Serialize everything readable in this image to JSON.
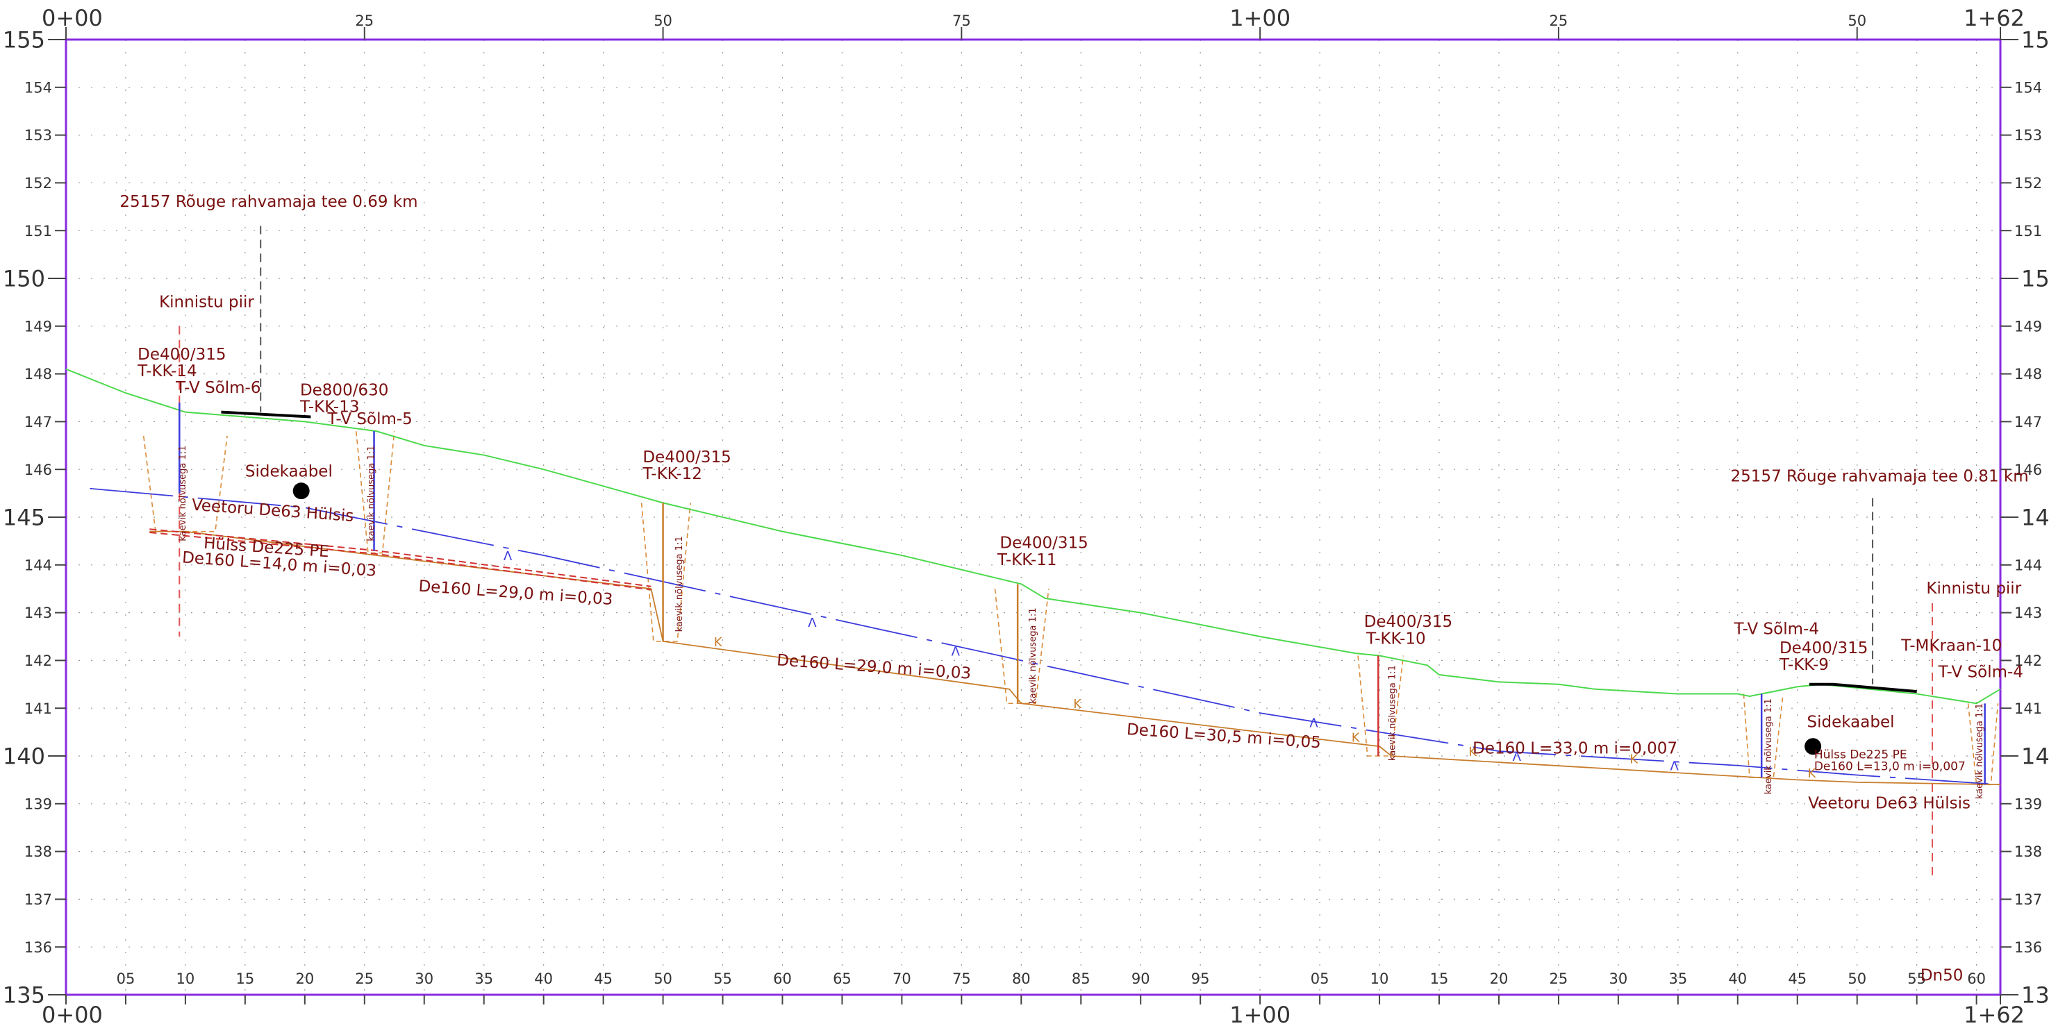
{
  "chart_data": {
    "type": "profile",
    "x_range": [
      0,
      162
    ],
    "y_range": [
      135,
      155
    ],
    "top_station_labels": [
      {
        "x": 0,
        "text": "0+00"
      },
      {
        "x": 25,
        "text": "25"
      },
      {
        "x": 50,
        "text": "50"
      },
      {
        "x": 75,
        "text": "75"
      },
      {
        "x": 100,
        "text": "1+00"
      },
      {
        "x": 125,
        "text": "25"
      },
      {
        "x": 150,
        "text": "50"
      },
      {
        "x": 162,
        "text": "1+62"
      }
    ],
    "bottom_station_labels": [
      {
        "x": 0,
        "text": "0+00"
      },
      {
        "x": 5,
        "text": "05"
      },
      {
        "x": 10,
        "text": "10"
      },
      {
        "x": 15,
        "text": "15"
      },
      {
        "x": 20,
        "text": "20"
      },
      {
        "x": 25,
        "text": "25"
      },
      {
        "x": 30,
        "text": "30"
      },
      {
        "x": 35,
        "text": "35"
      },
      {
        "x": 40,
        "text": "40"
      },
      {
        "x": 45,
        "text": "45"
      },
      {
        "x": 50,
        "text": "50"
      },
      {
        "x": 55,
        "text": "55"
      },
      {
        "x": 60,
        "text": "60"
      },
      {
        "x": 65,
        "text": "65"
      },
      {
        "x": 70,
        "text": "70"
      },
      {
        "x": 75,
        "text": "75"
      },
      {
        "x": 80,
        "text": "80"
      },
      {
        "x": 85,
        "text": "85"
      },
      {
        "x": 90,
        "text": "90"
      },
      {
        "x": 95,
        "text": "95"
      },
      {
        "x": 100,
        "text": "1+00"
      },
      {
        "x": 105,
        "text": "05"
      },
      {
        "x": 110,
        "text": "10"
      },
      {
        "x": 115,
        "text": "15"
      },
      {
        "x": 120,
        "text": "20"
      },
      {
        "x": 125,
        "text": "25"
      },
      {
        "x": 130,
        "text": "30"
      },
      {
        "x": 135,
        "text": "35"
      },
      {
        "x": 140,
        "text": "40"
      },
      {
        "x": 145,
        "text": "45"
      },
      {
        "x": 150,
        "text": "50"
      },
      {
        "x": 155,
        "text": "55"
      },
      {
        "x": 160,
        "text": "60"
      },
      {
        "x": 162,
        "text": "1+62"
      }
    ],
    "elevation_labels": [
      "135",
      "136",
      "137",
      "138",
      "139",
      "140",
      "141",
      "142",
      "143",
      "144",
      "145",
      "146",
      "147",
      "148",
      "149",
      "150",
      "151",
      "152",
      "153",
      "154",
      "155"
    ],
    "major_elevations": [
      "135",
      "140",
      "145",
      "150",
      "155"
    ],
    "series": [
      {
        "key": "ground",
        "color": "#4cd94c",
        "x": [
          0,
          5,
          10,
          20,
          26,
          30,
          35,
          40,
          50,
          60,
          70,
          80,
          82,
          90,
          100,
          108,
          110,
          114,
          115,
          120,
          125,
          128,
          135,
          140,
          141,
          145,
          147,
          155,
          160,
          162
        ],
        "y": [
          148.1,
          147.6,
          147.2,
          147.0,
          146.8,
          146.5,
          146.3,
          146.0,
          145.3,
          144.7,
          144.2,
          143.6,
          143.3,
          143.0,
          142.5,
          142.15,
          142.1,
          141.9,
          141.7,
          141.55,
          141.5,
          141.4,
          141.3,
          141.3,
          141.25,
          141.45,
          141.5,
          141.3,
          141.1,
          141.4
        ]
      },
      {
        "key": "water_pipe",
        "color": "#3b3bdc",
        "x": [
          2,
          20,
          40,
          60,
          80,
          100,
          120,
          140,
          150,
          162
        ],
        "y": [
          145.6,
          145.2,
          144.2,
          143.1,
          142.0,
          140.9,
          140.1,
          139.8,
          139.6,
          139.4
        ]
      },
      {
        "key": "sewer_invert",
        "color": "#c87d2c",
        "x": [
          7,
          10,
          26,
          49,
          50,
          79,
          80,
          110,
          111,
          145,
          150,
          162
        ],
        "y": [
          144.7,
          144.7,
          144.2,
          143.5,
          142.4,
          141.4,
          141.1,
          140.2,
          140.0,
          139.5,
          139.45,
          139.4
        ]
      },
      {
        "key": "cable_conduit",
        "color": "#d23232",
        "x": [
          7,
          26,
          49
        ],
        "y": [
          144.75,
          144.3,
          143.55
        ]
      }
    ],
    "road_surfaces": [
      {
        "x": [
          13,
          20.5
        ],
        "y": [
          147.2,
          147.1
        ]
      },
      {
        "x": [
          146,
          148,
          155
        ],
        "y": [
          141.5,
          141.5,
          141.35
        ]
      }
    ],
    "wells": [
      {
        "x": 9.5,
        "top": 147.4,
        "bottom": 145.5,
        "color": "#3b3bdc"
      },
      {
        "x": 25.8,
        "top": 146.8,
        "bottom": 144.3,
        "color": "#3b3bdc"
      },
      {
        "x": 50,
        "top": 145.3,
        "bottom": 142.4,
        "color": "#c87d2c"
      },
      {
        "x": 79.7,
        "top": 143.6,
        "bottom": 141.1,
        "color": "#c87d2c"
      },
      {
        "x": 109.9,
        "top": 142.1,
        "bottom": 140.0,
        "color": "#d23232"
      },
      {
        "x": 142,
        "top": 141.3,
        "bottom": 139.55,
        "color": "#3b3bdc"
      },
      {
        "x": 160.7,
        "top": 141.1,
        "bottom": 139.4,
        "color": "#3b3bdc"
      }
    ],
    "excavations": [
      {
        "x": [
          6.5,
          7.5,
          12.5,
          13.5
        ],
        "top": 146.7,
        "bottom": 144.7
      },
      {
        "x": [
          24.3,
          25.3,
          26.5,
          27.5
        ],
        "top": 146.8,
        "bottom": 144.25
      },
      {
        "x": [
          48.2,
          49.2,
          51.2,
          52.3
        ],
        "top": 145.3,
        "bottom": 142.4
      },
      {
        "x": [
          77.8,
          78.8,
          81.2,
          82.3
        ],
        "top": 143.5,
        "bottom": 141.1
      },
      {
        "x": [
          108.2,
          109.0,
          111.0,
          112.0
        ],
        "top": 142.1,
        "bottom": 140.0
      },
      {
        "x": [
          140.5,
          141.0,
          143.0,
          143.8
        ],
        "top": 141.3,
        "bottom": 139.55
      },
      {
        "x": [
          159.3,
          160.0,
          161.2,
          161.8
        ],
        "top": 141.1,
        "bottom": 139.4
      }
    ],
    "leaders": [
      {
        "x": 16.3,
        "y1": 151.1,
        "y2": 147.2,
        "color": "#555555"
      },
      {
        "x": 151.3,
        "y1": 145.4,
        "y2": 141.5,
        "color": "#555555"
      },
      {
        "x": 9.5,
        "y1": 149.0,
        "y2": 142.5,
        "color": "#e05555"
      },
      {
        "x": 156.3,
        "y1": 143.2,
        "y2": 137.4,
        "color": "#e05555"
      }
    ],
    "markers": [
      {
        "name": "sidekaabel-marker",
        "x": 19.7,
        "y": 145.55
      },
      {
        "name": "sidekaabel-marker",
        "x": 146.3,
        "y": 140.2
      }
    ],
    "annotations": [
      {
        "name": "road-label",
        "text": "25157 Rõuge rahvamaja tee  0.69 km",
        "x": 4.5,
        "y": 151.5,
        "size": 23
      },
      {
        "name": "property-boundary-label",
        "text": "Kinnistu piir",
        "x": 7.8,
        "y": 149.4,
        "size": 23
      },
      {
        "name": "pipe-size-label",
        "text": "De400/315",
        "x": 6,
        "y": 148.3,
        "size": 23
      },
      {
        "name": "well-id-label",
        "text": "T-KK-14",
        "x": 6,
        "y": 147.95,
        "size": 23
      },
      {
        "name": "node-label",
        "text": "T-V Sõlm-6",
        "x": 9.2,
        "y": 147.6,
        "size": 23
      },
      {
        "name": "pipe-size-label",
        "text": "De800/630",
        "x": 19.6,
        "y": 147.55,
        "size": 23
      },
      {
        "name": "well-id-label",
        "text": "T-KK-13",
        "x": 19.6,
        "y": 147.2,
        "size": 23
      },
      {
        "name": "node-label",
        "text": "T-V Sõlm-5",
        "x": 21.9,
        "y": 146.95,
        "size": 23
      },
      {
        "name": "sidekaabel-label",
        "text": "Sidekaabel",
        "x": 15,
        "y": 145.85,
        "size": 23
      },
      {
        "name": "water-pipe-label",
        "text": "Veetoru De63 Hülsis",
        "x": 10.5,
        "y": 145.15,
        "size": 23,
        "rotate": 4
      },
      {
        "name": "conduit-label",
        "text": "Hülss De225 PE",
        "x": 11.5,
        "y": 144.35,
        "size": 23,
        "rotate": 4
      },
      {
        "name": "sewer-segment-label",
        "text": "De160 L=14,0 m i=0,03",
        "x": 9.7,
        "y": 144.05,
        "size": 23,
        "rotate": 4
      },
      {
        "name": "sewer-segment-label",
        "text": "De160 L=29,0 m i=0,03",
        "x": 29.5,
        "y": 143.45,
        "size": 23,
        "rotate": 4
      },
      {
        "name": "pipe-size-label",
        "text": "De400/315",
        "x": 48.3,
        "y": 146.15,
        "size": 23
      },
      {
        "name": "well-id-label",
        "text": "T-KK-12",
        "x": 48.3,
        "y": 145.8,
        "size": 23
      },
      {
        "name": "sewer-segment-label",
        "text": "De160 L=29,0 m i=0,03",
        "x": 59.5,
        "y": 141.9,
        "size": 23,
        "rotate": 4
      },
      {
        "name": "pipe-size-label",
        "text": "De400/315",
        "x": 78.2,
        "y": 144.35,
        "size": 23
      },
      {
        "name": "well-id-label",
        "text": "T-KK-11",
        "x": 78,
        "y": 144.0,
        "size": 23
      },
      {
        "name": "sewer-segment-label",
        "text": "De160 L=30,5 m i=0,05",
        "x": 88.8,
        "y": 140.45,
        "size": 23,
        "rotate": 4
      },
      {
        "name": "pipe-size-label",
        "text": "De400/315",
        "x": 108.7,
        "y": 142.7,
        "size": 23
      },
      {
        "name": "well-id-label",
        "text": "T-KK-10",
        "x": 108.9,
        "y": 142.35,
        "size": 23
      },
      {
        "name": "sewer-segment-label",
        "text": "De160 L=33,0 m i=0,007",
        "x": 117.8,
        "y": 140.05,
        "size": 23
      },
      {
        "name": "road-label",
        "text": "25157 Rõuge rahvamaja tee  0.81 km",
        "x": 139.4,
        "y": 145.75,
        "size": 23
      },
      {
        "name": "property-boundary-label",
        "text": "Kinnistu piir",
        "x": 155.8,
        "y": 143.4,
        "size": 23
      },
      {
        "name": "node-label",
        "text": "T-V Sõlm-4",
        "x": 139.7,
        "y": 142.55,
        "size": 23
      },
      {
        "name": "pipe-size-label",
        "text": "De400/315",
        "x": 143.5,
        "y": 142.15,
        "size": 23
      },
      {
        "name": "well-id-label",
        "text": "T-KK-9",
        "x": 143.5,
        "y": 141.8,
        "size": 23
      },
      {
        "name": "crane-node-label",
        "text": "T-MKraan-10",
        "x": 153.7,
        "y": 142.2,
        "size": 23
      },
      {
        "name": "node-label",
        "text": "T-V Sõlm-4",
        "x": 156.8,
        "y": 141.65,
        "size": 23
      },
      {
        "name": "sidekaabel-label",
        "text": "Sidekaabel",
        "x": 145.8,
        "y": 140.6,
        "size": 23
      },
      {
        "name": "conduit-label",
        "text": "Hülss De225 PE",
        "x": 146.4,
        "y": 139.95,
        "size": 17
      },
      {
        "name": "sewer-segment-label",
        "text": "De160 L=13,0 m i=0,007",
        "x": 146.4,
        "y": 139.7,
        "size": 17
      },
      {
        "name": "water-pipe-label",
        "text": "Veetoru De63 Hülsis",
        "x": 145.9,
        "y": 138.9,
        "size": 23
      },
      {
        "name": "dn-label",
        "text": "Dn50",
        "x": 155.3,
        "y": 135.3,
        "size": 23
      }
    ],
    "slope_labels": [
      {
        "x": 10,
        "y": 145.5,
        "text": "kaevik nõlvusega 1:1"
      },
      {
        "x": 25.8,
        "y": 145.5,
        "text": "kaevik nõlvusega 1:1"
      },
      {
        "x": 51.6,
        "y": 143.6,
        "text": "kaevik nõlvusega 1:1"
      },
      {
        "x": 81.2,
        "y": 142.1,
        "text": "kaevik nõlvusega 1:1"
      },
      {
        "x": 111.3,
        "y": 140.9,
        "text": "kaevik nõlvusega 1:1"
      },
      {
        "x": 142.8,
        "y": 140.2,
        "text": "kaevik nõlvusega 1:1"
      },
      {
        "x": 160.5,
        "y": 140.1,
        "text": "kaevik nõlvusega 1:1"
      }
    ],
    "flow_marks": [
      {
        "x": 37,
        "y": 144.1,
        "text": "Λ",
        "color": "#3b3bdc"
      },
      {
        "x": 62.5,
        "y": 142.7,
        "text": "Λ",
        "color": "#3b3bdc"
      },
      {
        "x": 74.5,
        "y": 142.1,
        "text": "Λ",
        "color": "#3b3bdc"
      },
      {
        "x": 104.5,
        "y": 140.6,
        "text": "Λ",
        "color": "#3b3bdc"
      },
      {
        "x": 121.5,
        "y": 139.9,
        "text": "Λ",
        "color": "#3b3bdc"
      },
      {
        "x": 134.7,
        "y": 139.7,
        "text": "Λ",
        "color": "#3b3bdc"
      },
      {
        "x": 54.6,
        "y": 142.3,
        "text": "K",
        "color": "#c87d2c"
      },
      {
        "x": 84.7,
        "y": 141.0,
        "text": "K",
        "color": "#c87d2c"
      },
      {
        "x": 108,
        "y": 140.3,
        "text": "K",
        "color": "#c87d2c"
      },
      {
        "x": 117.8,
        "y": 140.0,
        "text": "K",
        "color": "#c87d2c"
      },
      {
        "x": 131.3,
        "y": 139.85,
        "text": "K",
        "color": "#c87d2c"
      },
      {
        "x": 146.2,
        "y": 139.55,
        "text": "K",
        "color": "#c87d2c"
      }
    ]
  }
}
